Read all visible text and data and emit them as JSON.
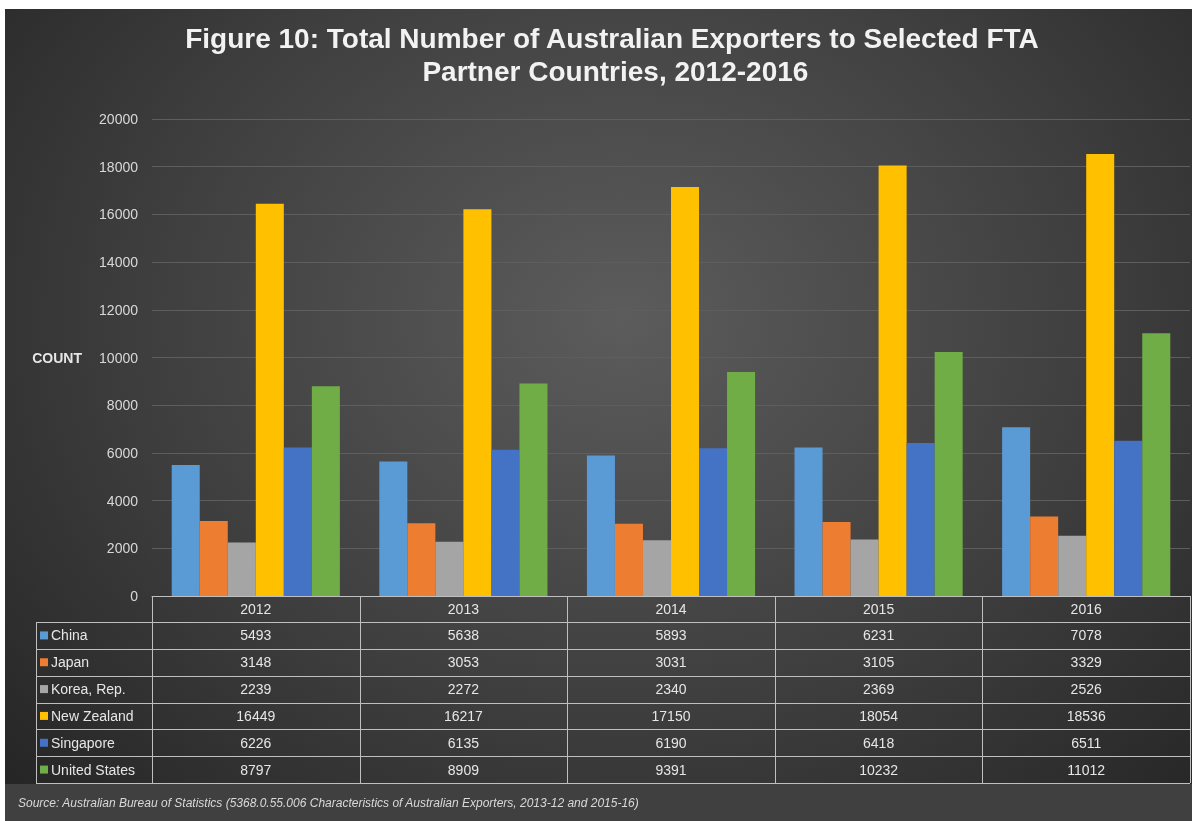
{
  "chart_data": {
    "type": "bar",
    "title": "Figure 10: Total Number of Australian Exporters to Selected FTA Partner Countries, 2012-2016",
    "ylabel": "COUNT",
    "categories": [
      "2012",
      "2013",
      "2014",
      "2015",
      "2016"
    ],
    "series": [
      {
        "name": "China",
        "color": "#5b9bd5",
        "values": [
          5493,
          5638,
          5893,
          6231,
          7078
        ]
      },
      {
        "name": "Japan",
        "color": "#ed7d31",
        "values": [
          3148,
          3053,
          3031,
          3105,
          3329
        ]
      },
      {
        "name": "Korea, Rep.",
        "color": "#a5a5a5",
        "values": [
          2239,
          2272,
          2340,
          2369,
          2526
        ]
      },
      {
        "name": "New Zealand",
        "color": "#ffc000",
        "values": [
          16449,
          16217,
          17150,
          18054,
          18536
        ]
      },
      {
        "name": "Singapore",
        "color": "#4472c4",
        "values": [
          6226,
          6135,
          6190,
          6418,
          6511
        ]
      },
      {
        "name": "United States",
        "color": "#70ad47",
        "values": [
          8797,
          8909,
          9391,
          10232,
          11012
        ]
      }
    ],
    "ylim": [
      0,
      20000
    ],
    "yticks": [
      0,
      2000,
      4000,
      6000,
      8000,
      10000,
      12000,
      14000,
      16000,
      18000,
      20000
    ],
    "grid": "y",
    "legend": "bottom left",
    "data_labels": true,
    "annotations": [
      "Source: Australian Bureau of Statistics (5368.0.55.006 Characteristics of Australian Exporters, 2013-12 and 2015-16)"
    ]
  }
}
